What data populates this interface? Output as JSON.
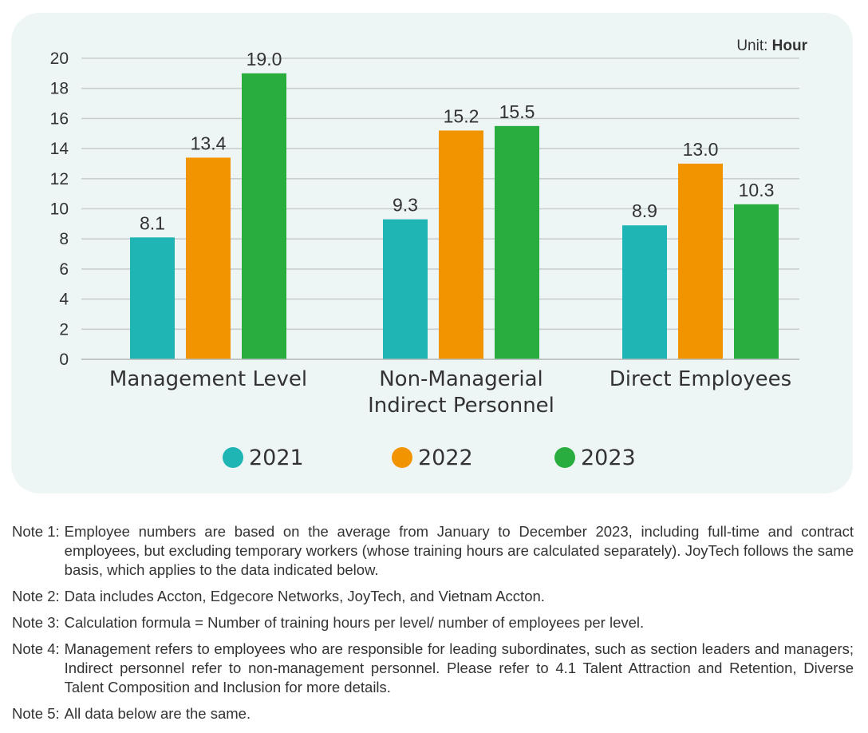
{
  "unit": {
    "label": "Unit:",
    "value": "Hour"
  },
  "chart_data": {
    "type": "bar",
    "categories": [
      [
        "Management Level"
      ],
      [
        "Non-Managerial",
        "Indirect Personnel"
      ],
      [
        "Direct Employees"
      ]
    ],
    "series": [
      {
        "name": "2021",
        "color": "#1fb5b5",
        "values": [
          8.1,
          9.3,
          8.9
        ]
      },
      {
        "name": "2022",
        "color": "#f29400",
        "values": [
          13.4,
          15.2,
          13.0
        ]
      },
      {
        "name": "2023",
        "color": "#28ad3e",
        "values": [
          19.0,
          15.5,
          10.3
        ]
      }
    ],
    "data_labels": [
      [
        "8.1",
        "9.3",
        "8.9"
      ],
      [
        "13.4",
        "15.2",
        "13.0"
      ],
      [
        "19.0",
        "15.5",
        "10.3"
      ]
    ],
    "yticks": [
      "0",
      "2",
      "4",
      "6",
      "8",
      "10",
      "12",
      "14",
      "16",
      "18",
      "20"
    ],
    "ylim": [
      0,
      20
    ],
    "grid": true,
    "legend_position": "bottom"
  },
  "notes": [
    {
      "label": "Note 1:",
      "text": "Employee numbers are based on the average from January to December 2023, including full-time and contract employees, but excluding temporary workers (whose training hours are calculated separately). JoyTech follows the same basis, which applies to the data indicated below."
    },
    {
      "label": "Note 2:",
      "text": "Data includes Accton, Edgecore Networks, JoyTech, and Vietnam Accton."
    },
    {
      "label": "Note 3:",
      "text": "Calculation formula = Number of training hours per level/ number of employees per level."
    },
    {
      "label": "Note 4:",
      "text": "Management refers to employees who are responsible for leading subordinates, such as section leaders and managers; Indirect personnel refer to non-management personnel. Please refer to 4.1 Talent Attraction and Retention, Diverse Talent Composition and Inclusion for more details."
    },
    {
      "label": "Note 5:",
      "text": "All data below are the same."
    }
  ]
}
